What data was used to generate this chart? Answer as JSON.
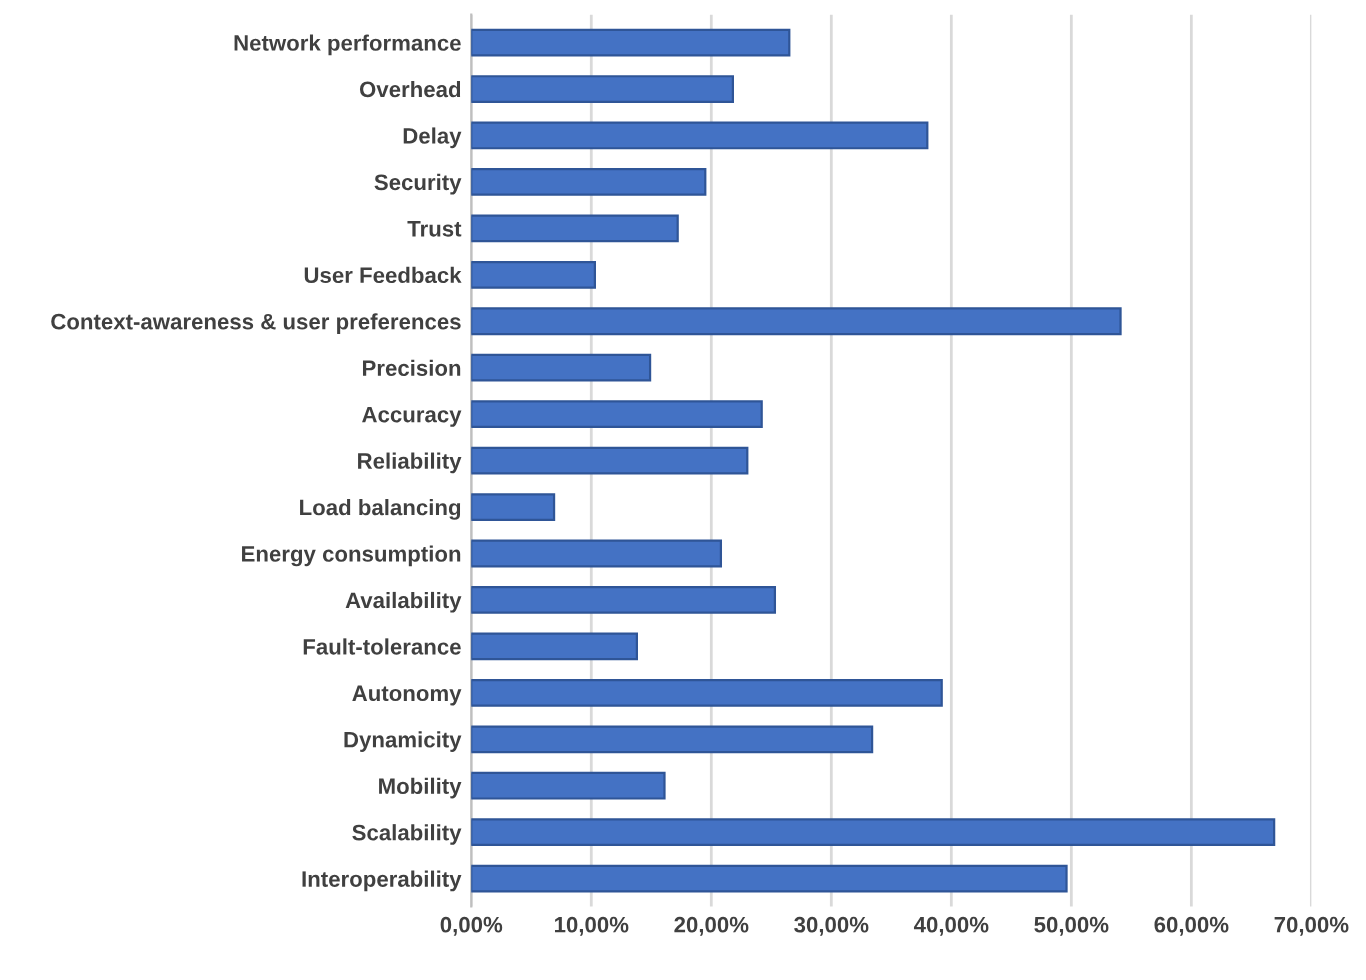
{
  "chart_data": {
    "type": "bar",
    "orientation": "horizontal",
    "categories": [
      "Network performance",
      "Overhead",
      "Delay",
      "Security",
      "Trust",
      "User Feedback",
      "Context-awareness & user preferences",
      "Precision",
      "Accuracy",
      "Reliability",
      "Load balancing",
      "Energy consumption",
      "Availability",
      "Fault-tolerance",
      "Autonomy",
      "Dynamicity",
      "Mobility",
      "Scalability",
      "Interoperability"
    ],
    "values": [
      26.5,
      21.8,
      38.0,
      19.5,
      17.2,
      10.3,
      54.1,
      14.9,
      24.2,
      23.0,
      6.9,
      20.8,
      25.3,
      13.8,
      39.2,
      33.4,
      16.1,
      66.9,
      49.6
    ],
    "color": "#4472c4",
    "xlim": [
      0,
      70
    ],
    "xticks": [
      {
        "value": 0,
        "label": "0,00%"
      },
      {
        "value": 10,
        "label": "10,00%"
      },
      {
        "value": 20,
        "label": "20,00%"
      },
      {
        "value": 30,
        "label": "30,00%"
      },
      {
        "value": 40,
        "label": "40,00%"
      },
      {
        "value": 50,
        "label": "50,00%"
      },
      {
        "value": 60,
        "label": "60,00%"
      },
      {
        "value": 70,
        "label": "70,00%"
      }
    ],
    "grid": "x"
  }
}
